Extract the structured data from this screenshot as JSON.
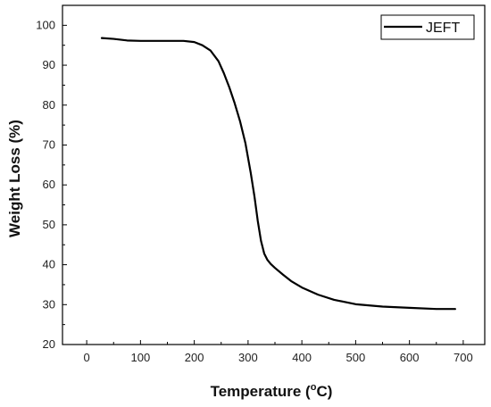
{
  "chart_data": {
    "type": "line",
    "xlabel": "Temperature (",
    "xlabel_sup": "o",
    "xlabel_unit": "C)",
    "ylabel": "Weight Loss (%)",
    "xlim": [
      -45,
      740
    ],
    "ylim": [
      20,
      105
    ],
    "xticks": [
      0,
      100,
      200,
      300,
      400,
      500,
      600,
      700
    ],
    "yticks": [
      20,
      30,
      40,
      50,
      60,
      70,
      80,
      90,
      100
    ],
    "grid": false,
    "legend_position": "top-right",
    "series": [
      {
        "name": "JEFT",
        "color": "#000000",
        "x": [
          28,
          50,
          75,
          100,
          150,
          180,
          200,
          215,
          230,
          245,
          255,
          265,
          275,
          285,
          295,
          305,
          312,
          318,
          324,
          330,
          336,
          342,
          350,
          365,
          380,
          400,
          430,
          460,
          500,
          550,
          600,
          650,
          685
        ],
        "y": [
          96.8,
          96.6,
          96.2,
          96.1,
          96.1,
          96.1,
          95.8,
          95.0,
          93.7,
          91.0,
          88.0,
          84.5,
          80.5,
          76.0,
          70.5,
          63.0,
          57.0,
          51.0,
          46.0,
          42.8,
          41.2,
          40.2,
          39.2,
          37.5,
          35.9,
          34.3,
          32.5,
          31.2,
          30.1,
          29.5,
          29.2,
          28.9,
          28.9
        ]
      }
    ]
  }
}
